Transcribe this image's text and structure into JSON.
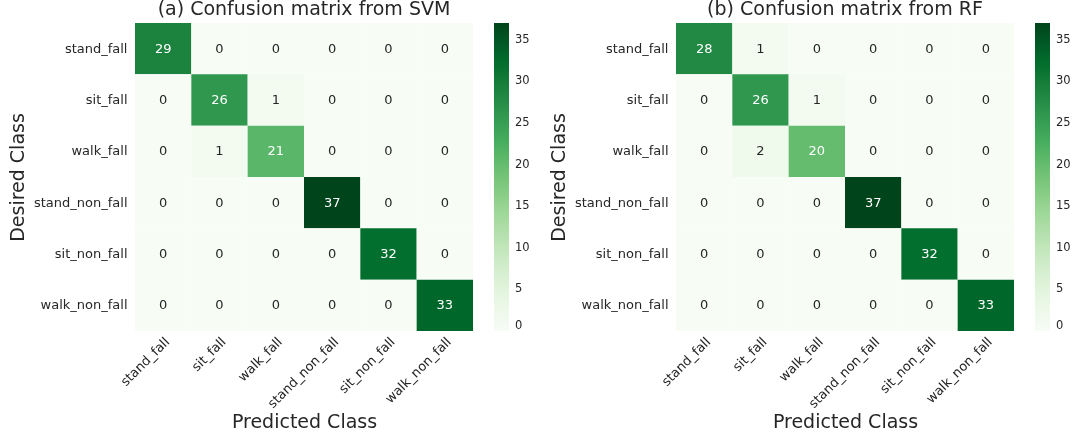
{
  "chart_data": [
    {
      "type": "heatmap",
      "title": "(a) Confusion matrix from SVM",
      "xlabel": "Predicted Class",
      "ylabel": "Desired Class",
      "categories": [
        "stand_fall",
        "sit_fall",
        "walk_fall",
        "stand_non_fall",
        "sit_non_fall",
        "walk_non_fall"
      ],
      "y_categories": [
        "stand_fall",
        "sit_fall",
        "walk_fall",
        "stand_non_fall",
        "sit_non_fall",
        "walk_non_fall"
      ],
      "cells": [
        [
          29,
          0,
          0,
          0,
          0,
          0
        ],
        [
          0,
          26,
          1,
          0,
          0,
          0
        ],
        [
          0,
          1,
          21,
          0,
          0,
          0
        ],
        [
          0,
          0,
          0,
          37,
          0,
          0
        ],
        [
          0,
          0,
          0,
          0,
          32,
          0
        ],
        [
          0,
          0,
          0,
          0,
          0,
          33
        ]
      ],
      "clim": [
        0,
        37
      ],
      "cticks": [
        0,
        5,
        10,
        15,
        20,
        25,
        30,
        35
      ],
      "data_labels": true
    },
    {
      "type": "heatmap",
      "title": "(b) Confusion matrix from RF",
      "xlabel": "Predicted Class",
      "ylabel": "Desired Class",
      "categories": [
        "stand_fall",
        "sit_fall",
        "walk_fall",
        "stand_non_fall",
        "sit_non_fall",
        "walk_non_fall"
      ],
      "y_categories": [
        "stand_fall",
        "sit_fall",
        "walk_fall",
        "stand_non_fall",
        "sit_non_fall",
        "walk_non_fall"
      ],
      "cells": [
        [
          28,
          1,
          0,
          0,
          0,
          0
        ],
        [
          0,
          26,
          1,
          0,
          0,
          0
        ],
        [
          0,
          2,
          20,
          0,
          0,
          0
        ],
        [
          0,
          0,
          0,
          37,
          0,
          0
        ],
        [
          0,
          0,
          0,
          0,
          32,
          0
        ],
        [
          0,
          0,
          0,
          0,
          0,
          33
        ]
      ],
      "clim": [
        0,
        37
      ],
      "cticks": [
        0,
        5,
        10,
        15,
        20,
        25,
        30,
        35
      ],
      "data_labels": true
    }
  ]
}
